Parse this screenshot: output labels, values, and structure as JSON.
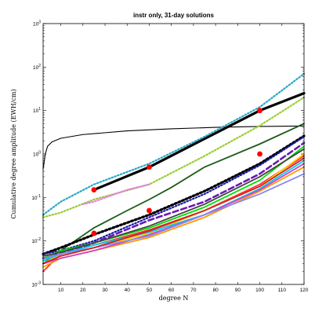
{
  "chart_data": {
    "type": "line",
    "title": "instr only, 31-day solutions",
    "xlabel": "degree N",
    "ylabel": "Cumulative degree amplitude (EWH/cm)",
    "xlim": [
      2,
      120
    ],
    "ylim": [
      0.001,
      1000
    ],
    "yscale": "log",
    "grid": false,
    "xticks": [
      10,
      20,
      30,
      40,
      50,
      60,
      70,
      80,
      90,
      100,
      110,
      120
    ],
    "yticks": [
      0.001,
      0.01,
      0.1,
      1,
      10,
      100,
      1000
    ],
    "ytick_labels": [
      "10^-3",
      "10^-2",
      "10^-1",
      "10^0",
      "10^1",
      "10^2",
      "10^3"
    ],
    "series": [
      {
        "color": "#000000",
        "style": "thin-solid",
        "points": [
          [
            2,
            0.45
          ],
          [
            3,
            1.0
          ],
          [
            4,
            1.5
          ],
          [
            6,
            1.9
          ],
          [
            10,
            2.3
          ],
          [
            20,
            2.8
          ],
          [
            40,
            3.4
          ],
          [
            60,
            3.8
          ],
          [
            80,
            4.1
          ],
          [
            100,
            4.3
          ],
          [
            120,
            4.4
          ]
        ]
      },
      {
        "color": "#000000",
        "style": "thick-solid",
        "points": [
          [
            25,
            0.15
          ],
          [
            50,
            0.5
          ],
          [
            100,
            10
          ],
          [
            120,
            25
          ]
        ]
      },
      {
        "color": "#2aa7c6",
        "style": "dotted",
        "points": [
          [
            2,
            0.04
          ],
          [
            10,
            0.08
          ],
          [
            25,
            0.2
          ],
          [
            50,
            0.6
          ],
          [
            75,
            2.5
          ],
          [
            100,
            12
          ],
          [
            120,
            70
          ]
        ]
      },
      {
        "color": "#9acd32",
        "style": "dotted",
        "points": [
          [
            2,
            0.035
          ],
          [
            10,
            0.045
          ],
          [
            25,
            0.09
          ],
          [
            50,
            0.2
          ],
          [
            75,
            0.9
          ],
          [
            100,
            4.5
          ],
          [
            120,
            20
          ]
        ]
      },
      {
        "color": "#e87fe8",
        "style": "dotted",
        "points": [
          [
            20,
            0.07
          ],
          [
            25,
            0.08
          ],
          [
            40,
            0.15
          ],
          [
            50,
            0.2
          ]
        ]
      },
      {
        "color": "#1a5c1a",
        "style": "solid",
        "points": [
          [
            2,
            0.003
          ],
          [
            10,
            0.006
          ],
          [
            25,
            0.02
          ],
          [
            40,
            0.05
          ],
          [
            50,
            0.09
          ],
          [
            60,
            0.17
          ],
          [
            75,
            0.5
          ],
          [
            100,
            1.7
          ],
          [
            120,
            5
          ]
        ]
      },
      {
        "color": "#000000",
        "style": "thick-dotted",
        "points": [
          [
            2,
            0.005
          ],
          [
            10,
            0.007
          ],
          [
            25,
            0.014
          ],
          [
            50,
            0.04
          ],
          [
            75,
            0.14
          ],
          [
            100,
            0.6
          ],
          [
            120,
            2.6
          ]
        ]
      },
      {
        "color": "#1a1aaa",
        "style": "dotted",
        "points": [
          [
            2,
            0.005
          ],
          [
            10,
            0.006
          ],
          [
            25,
            0.01
          ],
          [
            50,
            0.035
          ],
          [
            75,
            0.12
          ],
          [
            100,
            0.55
          ],
          [
            120,
            2.5
          ]
        ]
      },
      {
        "color": "#6a1ab3",
        "style": "dashed",
        "points": [
          [
            2,
            0.004
          ],
          [
            10,
            0.005
          ],
          [
            25,
            0.009
          ],
          [
            50,
            0.03
          ],
          [
            75,
            0.08
          ],
          [
            100,
            0.35
          ],
          [
            120,
            1.8
          ]
        ]
      },
      {
        "color": "#ff3030",
        "style": "solid",
        "points": [
          [
            2,
            0.002
          ],
          [
            10,
            0.005
          ],
          [
            25,
            0.008
          ],
          [
            50,
            0.018
          ],
          [
            75,
            0.05
          ],
          [
            100,
            0.2
          ],
          [
            120,
            0.9
          ]
        ]
      },
      {
        "color": "#ff9a00",
        "style": "solid",
        "points": [
          [
            2,
            0.0025
          ],
          [
            10,
            0.004
          ],
          [
            25,
            0.006
          ],
          [
            50,
            0.012
          ],
          [
            75,
            0.035
          ],
          [
            100,
            0.14
          ],
          [
            120,
            0.5
          ]
        ]
      },
      {
        "color": "#ffd700",
        "style": "solid",
        "points": [
          [
            2,
            0.003
          ],
          [
            10,
            0.005
          ],
          [
            25,
            0.007
          ],
          [
            50,
            0.015
          ],
          [
            75,
            0.05
          ],
          [
            100,
            0.18
          ],
          [
            120,
            1.0
          ]
        ]
      },
      {
        "color": "#00dd00",
        "style": "solid",
        "points": [
          [
            2,
            0.004
          ],
          [
            10,
            0.006
          ],
          [
            25,
            0.009
          ],
          [
            50,
            0.02
          ],
          [
            75,
            0.06
          ],
          [
            100,
            0.25
          ],
          [
            120,
            1.5
          ]
        ]
      },
      {
        "color": "#00ccee",
        "style": "solid",
        "points": [
          [
            2,
            0.0035
          ],
          [
            10,
            0.005
          ],
          [
            25,
            0.008
          ],
          [
            50,
            0.016
          ],
          [
            75,
            0.04
          ],
          [
            100,
            0.16
          ],
          [
            120,
            0.7
          ]
        ]
      },
      {
        "color": "#cc44cc",
        "style": "solid",
        "points": [
          [
            2,
            0.003
          ],
          [
            10,
            0.004
          ],
          [
            25,
            0.006
          ],
          [
            50,
            0.014
          ],
          [
            75,
            0.04
          ],
          [
            100,
            0.15
          ],
          [
            120,
            0.6
          ]
        ]
      },
      {
        "color": "#8888ee",
        "style": "solid",
        "points": [
          [
            2,
            0.004
          ],
          [
            10,
            0.005
          ],
          [
            25,
            0.007
          ],
          [
            50,
            0.013
          ],
          [
            75,
            0.04
          ],
          [
            100,
            0.12
          ],
          [
            120,
            0.35
          ]
        ]
      },
      {
        "color": "#cc2222",
        "style": "solid",
        "points": [
          [
            2,
            0.003
          ],
          [
            10,
            0.0045
          ],
          [
            25,
            0.007
          ],
          [
            50,
            0.017
          ],
          [
            75,
            0.05
          ],
          [
            100,
            0.18
          ],
          [
            120,
            0.8
          ]
        ]
      },
      {
        "color": "#444444",
        "style": "solid",
        "points": [
          [
            2,
            0.0045
          ],
          [
            10,
            0.0055
          ],
          [
            25,
            0.009
          ],
          [
            50,
            0.022
          ],
          [
            75,
            0.07
          ],
          [
            100,
            0.3
          ],
          [
            120,
            1.3
          ]
        ]
      },
      {
        "color": "#ff0000",
        "style": "markers",
        "points": [
          [
            25,
            0.15
          ],
          [
            50,
            0.5
          ],
          [
            100,
            10
          ],
          [
            25,
            0.015
          ],
          [
            50,
            0.05
          ],
          [
            100,
            1.0
          ]
        ]
      }
    ]
  }
}
